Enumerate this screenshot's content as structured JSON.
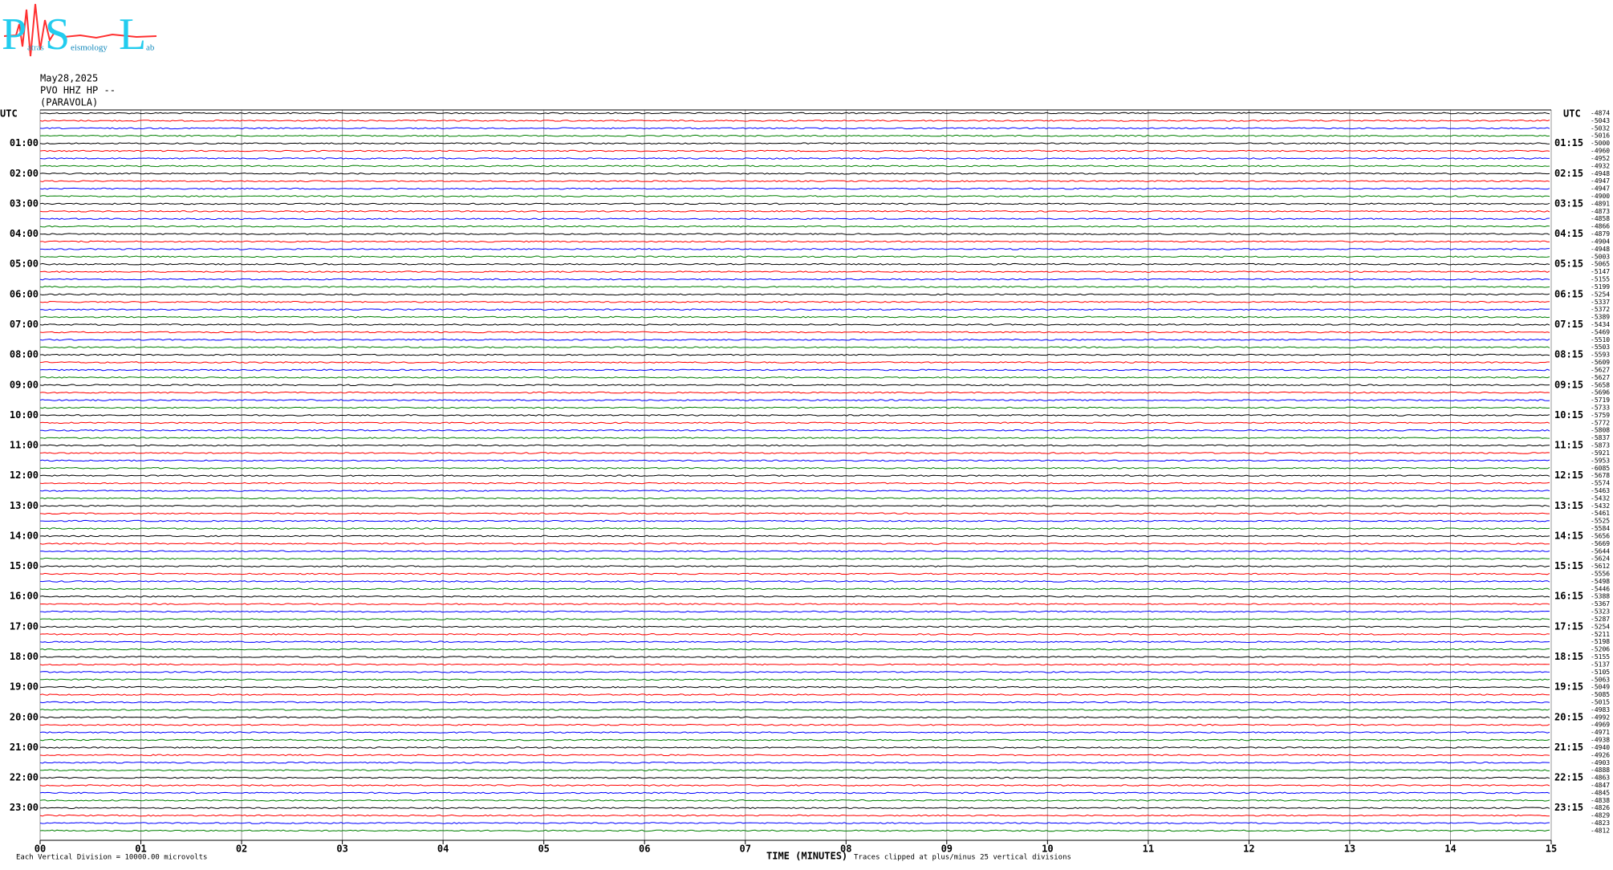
{
  "header": {
    "logo": {
      "p": "P",
      "atras": "atras",
      "s": "S",
      "eismology": "eismology",
      "l": "L",
      "ab": "ab"
    },
    "date": "May28,2025",
    "station": "PVO HHZ HP --",
    "location": "(PARAVOLA)"
  },
  "helicorder": {
    "left_top": "UTC",
    "right_top": "UTC",
    "left_labels": [
      "01:00",
      "02:00",
      "03:00",
      "04:00",
      "05:00",
      "06:00",
      "07:00",
      "08:00",
      "09:00",
      "10:00",
      "11:00",
      "12:00",
      "13:00",
      "14:00",
      "15:00",
      "16:00",
      "17:00",
      "18:00",
      "19:00",
      "20:00",
      "21:00",
      "22:00",
      "23:00"
    ],
    "right_labels": [
      "01:15",
      "02:15",
      "03:15",
      "04:15",
      "05:15",
      "06:15",
      "07:15",
      "08:15",
      "09:15",
      "10:15",
      "11:15",
      "12:15",
      "13:15",
      "14:15",
      "15:15",
      "16:15",
      "17:15",
      "18:15",
      "19:15",
      "20:15",
      "21:15",
      "22:15",
      "23:15"
    ],
    "minute_ticks": [
      "00",
      "01",
      "02",
      "03",
      "04",
      "05",
      "06",
      "07",
      "08",
      "09",
      "10",
      "11",
      "12",
      "13",
      "14",
      "15"
    ],
    "trace_colors": [
      "#000000",
      "#ff0000",
      "#0000ff",
      "#007f00"
    ],
    "trace_values": [
      -4874,
      -5043,
      -5032,
      -5016,
      -5000,
      -4960,
      -4952,
      -4932,
      -4948,
      -4947,
      -4947,
      -4900,
      -4891,
      -4873,
      -4858,
      -4866,
      -4879,
      -4904,
      -4948,
      -5003,
      -5065,
      -5147,
      -5155,
      -5199,
      -5254,
      -5337,
      -5372,
      -5389,
      -5434,
      -5469,
      -5510,
      -5503,
      -5593,
      -5609,
      -5627,
      -5627,
      -5658,
      -5696,
      -5719,
      -5733,
      -5759,
      -5772,
      -5808,
      -5837,
      -5873,
      -5921,
      -5953,
      -6085,
      -5678,
      -5574,
      -5463,
      -5432,
      -5432,
      -5461,
      -5525,
      -5584,
      -5656,
      -5669,
      -5644,
      -5624,
      -5612,
      -5556,
      -5498,
      -5446,
      -5388,
      -5367,
      -5323,
      -5287,
      -5254,
      -5211,
      -5198,
      -5206,
      -5155,
      -5137,
      -5105,
      -5063,
      -5049,
      -5085,
      -5015,
      -4983,
      -4992,
      -4969,
      -4971,
      -4938,
      -4940,
      -4926,
      -4903,
      -4888,
      -4863,
      -4847,
      -4845,
      -4838,
      -4826,
      -4829,
      -4823,
      -4812
    ]
  },
  "footer": {
    "scale": "Each Vertical Division = 10000.00 microvolts",
    "x_label": "TIME (MINUTES)",
    "clip_note": "Traces clipped at plus/minus 25 vertical divisions"
  }
}
